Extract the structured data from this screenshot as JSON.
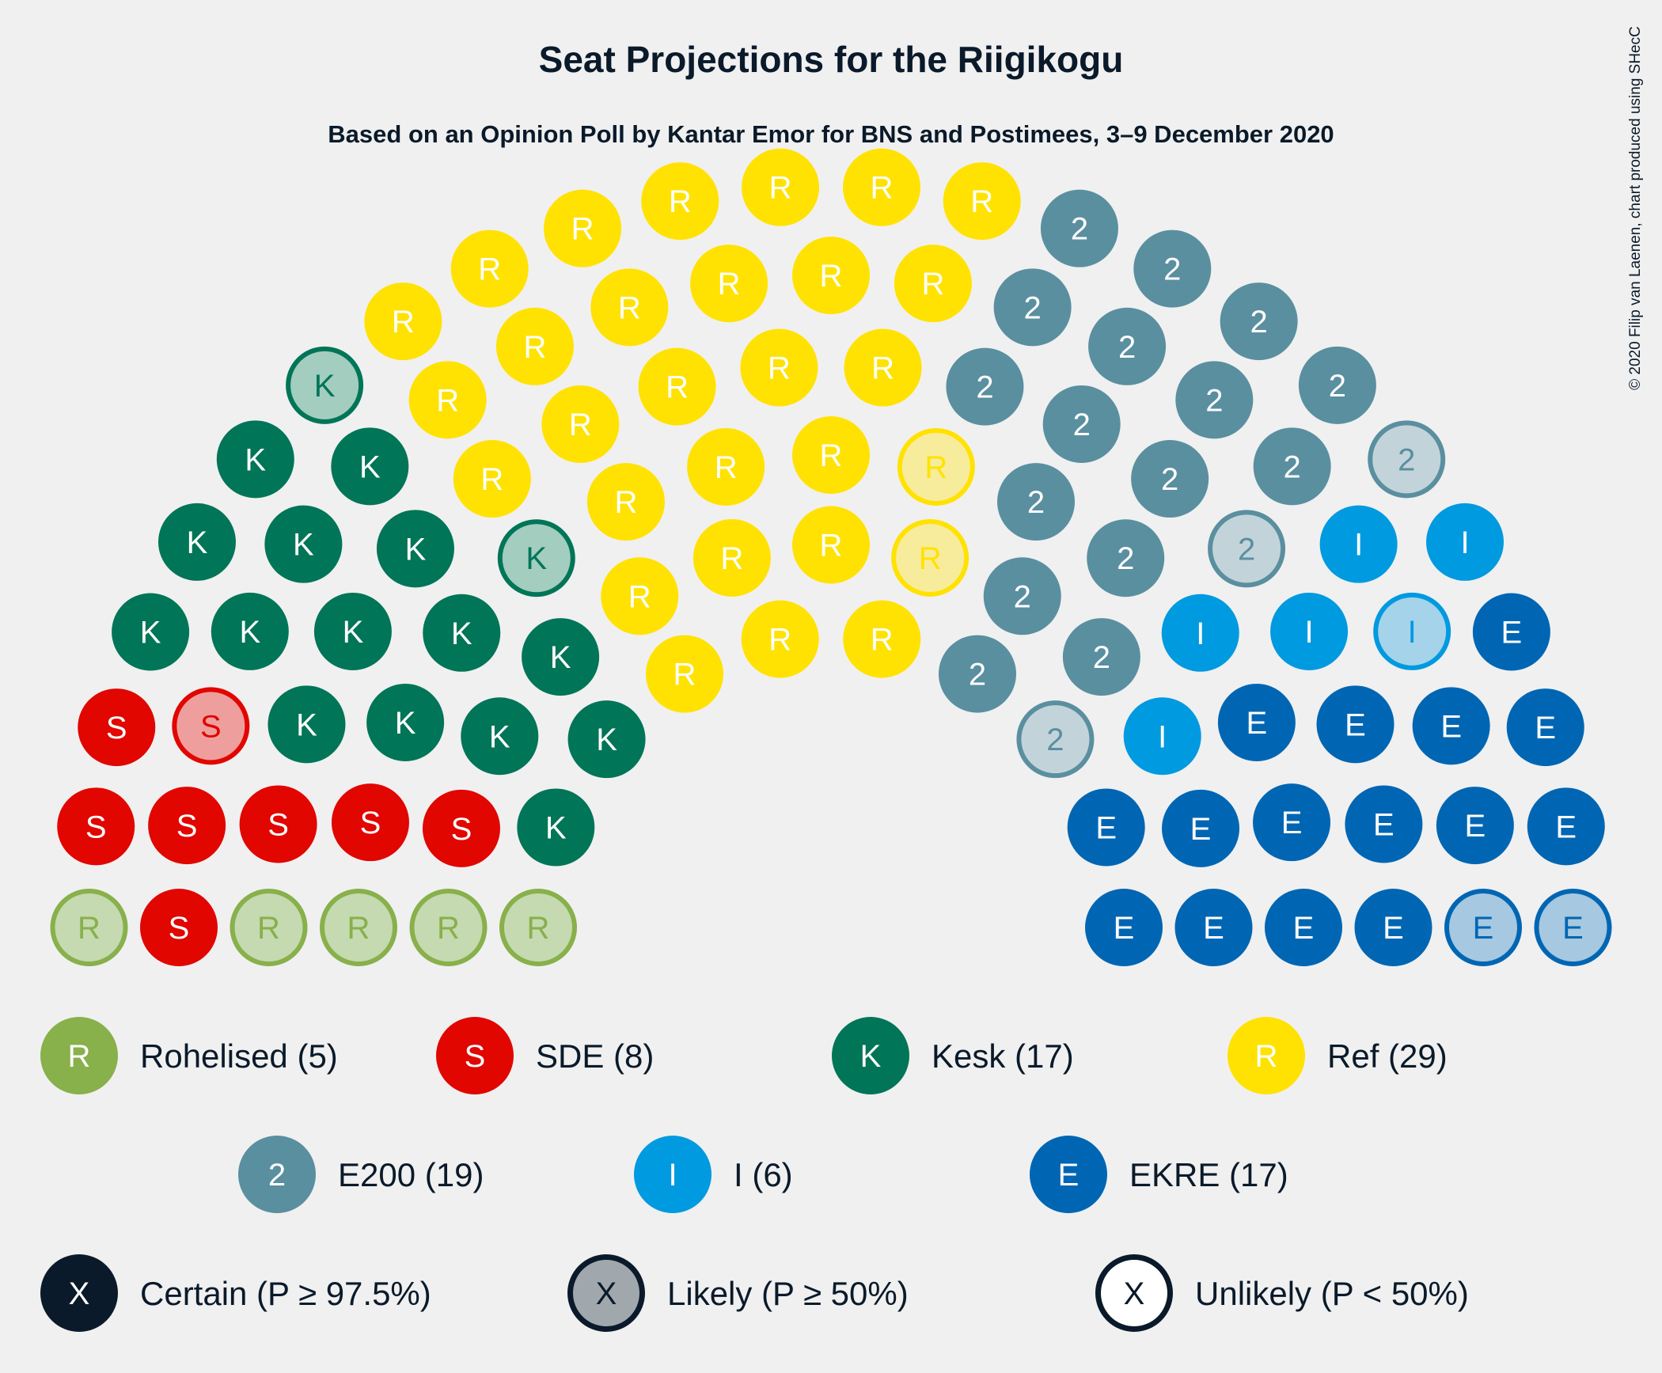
{
  "title": "Seat Projections for the Riigikogu",
  "subtitle": "Based on an Opinion Poll by Kantar Emor for BNS and Postimees, 3–9 December 2020",
  "credit": "© 2020 Filip van Laenen, chart produced using SHecC",
  "chart_data": {
    "type": "parliament",
    "total_seats": 101,
    "parties": [
      {
        "key": "rohelised",
        "letter": "R",
        "legend": "Rohelised (5)",
        "seats": 5,
        "color": "#88b04b",
        "light": "#c5dab0",
        "certain": 0,
        "likely": 5,
        "unlikely": 0
      },
      {
        "key": "sde",
        "letter": "S",
        "legend": "SDE (8)",
        "seats": 8,
        "color": "#e10600",
        "light": "#ee9f9d",
        "certain": 7,
        "likely": 1,
        "unlikely": 0
      },
      {
        "key": "kesk",
        "letter": "K",
        "legend": "Kesk (17)",
        "seats": 17,
        "color": "#007557",
        "light": "#a3cdbf",
        "certain": 15,
        "likely": 2,
        "unlikely": 0
      },
      {
        "key": "ref",
        "letter": "R",
        "legend": "Ref (29)",
        "seats": 29,
        "color": "#ffe201",
        "light": "#f7ec9c",
        "certain": 27,
        "likely": 0,
        "unlikely": 2
      },
      {
        "key": "e200",
        "letter": "2",
        "legend": "E200 (19)",
        "seats": 19,
        "color": "#5a8fa0",
        "light": "#c2d4da",
        "certain": 16,
        "likely": 3,
        "unlikely": 0
      },
      {
        "key": "isamaa",
        "letter": "I",
        "legend": "I (6)",
        "seats": 6,
        "color": "#009ae0",
        "light": "#a5d3ea",
        "certain": 5,
        "likely": 1,
        "unlikely": 0
      },
      {
        "key": "ekre",
        "letter": "E",
        "legend": "EKRE (17)",
        "seats": 17,
        "color": "#0066b3",
        "light": "#a6c8e0",
        "certain": 15,
        "likely": 2,
        "unlikely": 0
      }
    ],
    "probability_legend": [
      {
        "key": "certain",
        "letter": "X",
        "label": "Certain (P ≥ 97.5%)",
        "fill": "#0a1a2a",
        "stroke": "#0a1a2a",
        "text": "#ffffff"
      },
      {
        "key": "likely",
        "letter": "X",
        "label": "Likely (P ≥ 50%)",
        "fill": "#a0a8ae",
        "stroke": "#0a1a2a",
        "text": "#0a1a2a"
      },
      {
        "key": "unlikely",
        "letter": "X",
        "label": "Unlikely (P < 50%)",
        "fill": "#ffffff",
        "stroke": "#0a1a2a",
        "text": "#0a1a2a"
      }
    ]
  }
}
